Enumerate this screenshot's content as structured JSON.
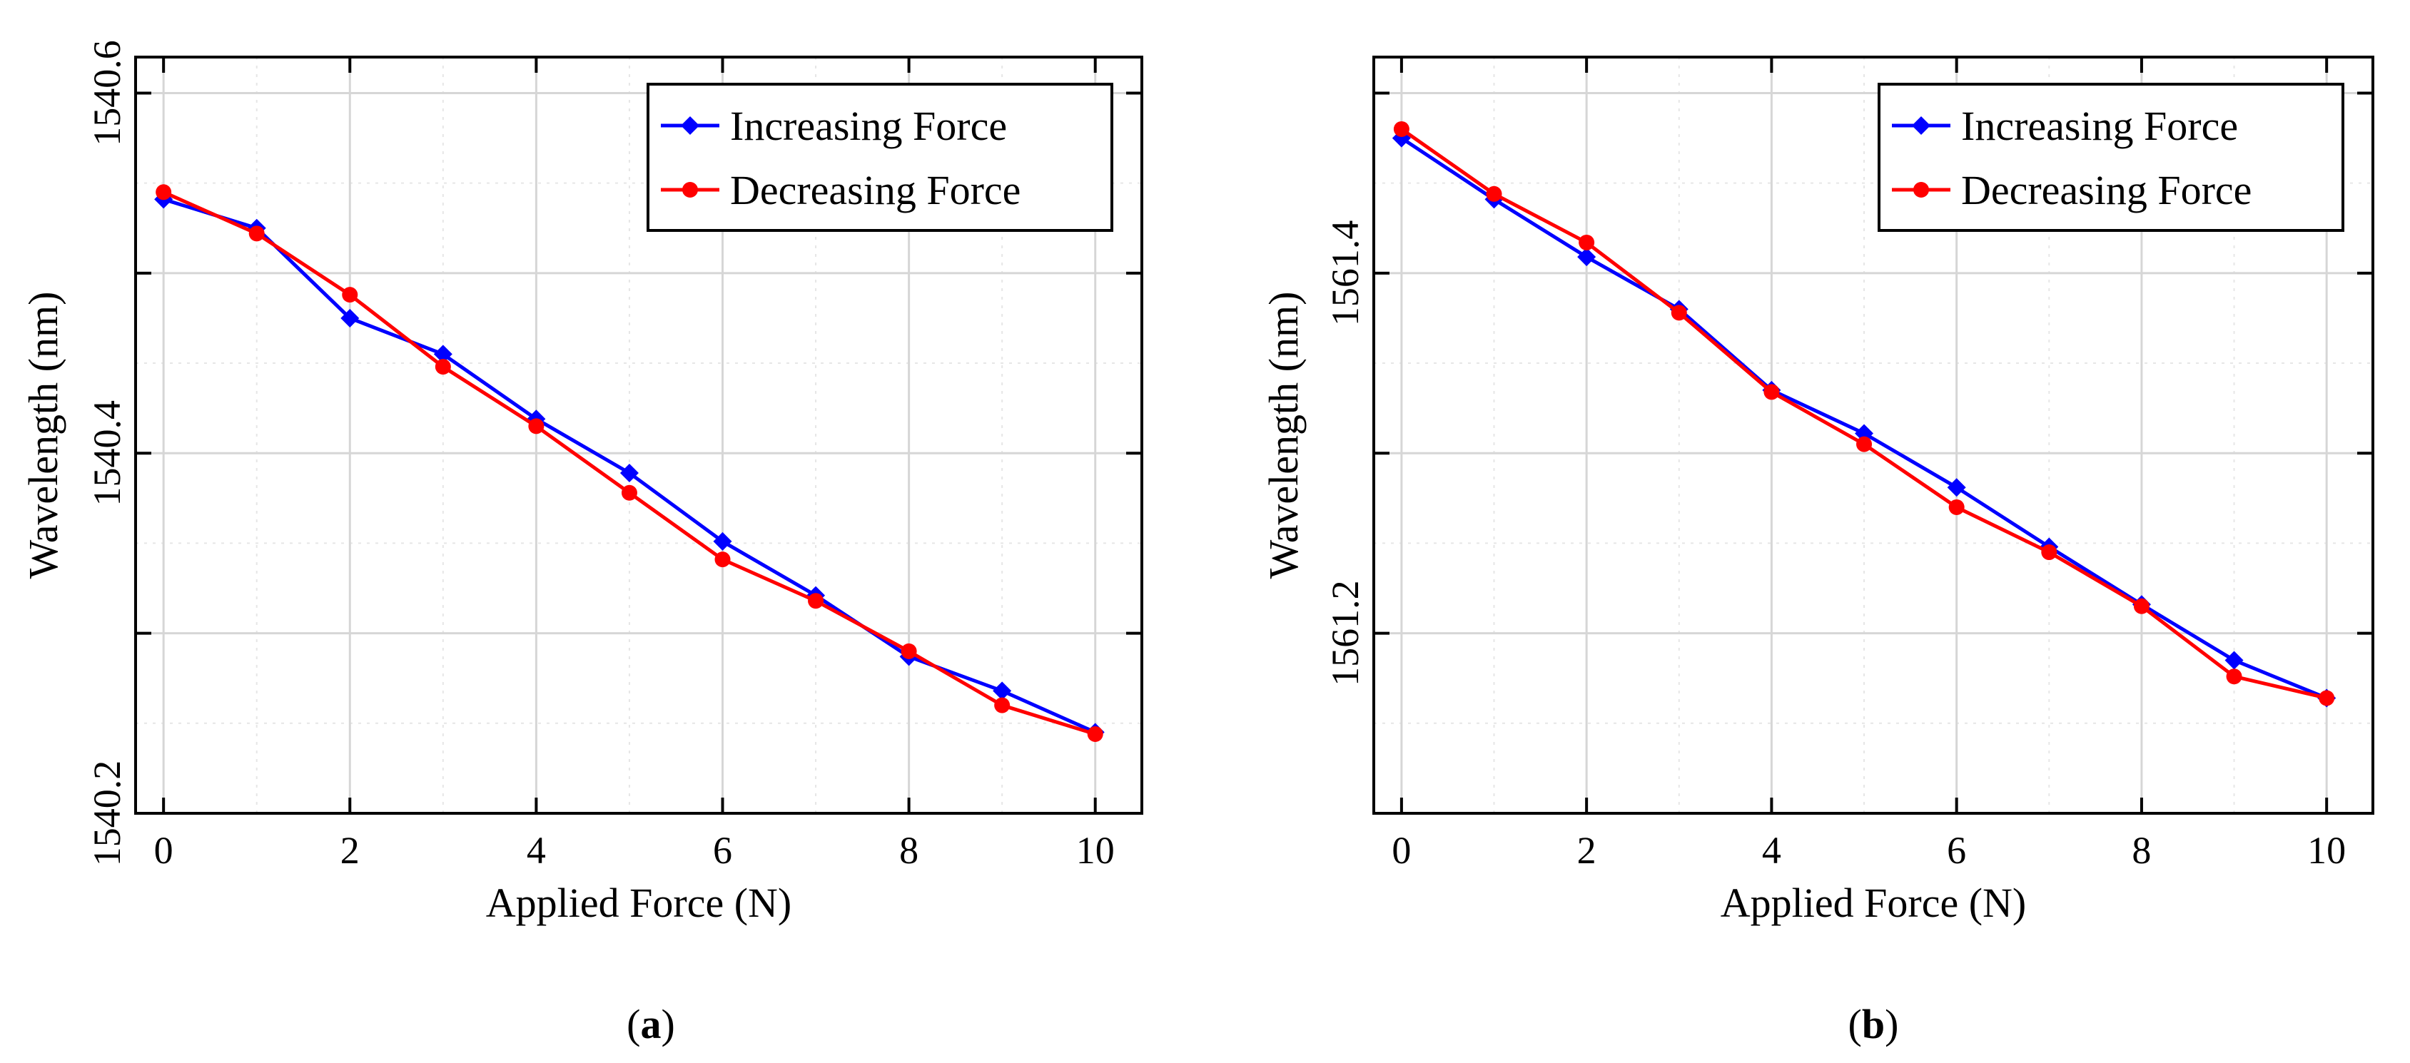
{
  "chart_data": [
    {
      "type": "line",
      "panel_label": "a",
      "title": "",
      "xlabel": "Applied Force (N)",
      "ylabel": "Wavelength (nm)",
      "xlim": [
        -0.3,
        10.5
      ],
      "ylim": [
        1540.2,
        1540.62
      ],
      "xticks": [
        0,
        2,
        4,
        6,
        8,
        10
      ],
      "xtick_labels": [
        "0",
        "2",
        "4",
        "6",
        "8",
        "10"
      ],
      "yticks": [
        1540.2,
        1540.4,
        1540.6
      ],
      "ytick_labels": [
        "1540.2",
        "1540.4",
        "1540.6"
      ],
      "grid": true,
      "legend_position": "top-right",
      "x": [
        0,
        1,
        2,
        3,
        4,
        5,
        6,
        7,
        8,
        9,
        10
      ],
      "series": [
        {
          "name": "Increasing Force",
          "color": "#0000ff",
          "marker": "diamond",
          "values": [
            1540.541,
            1540.525,
            1540.475,
            1540.455,
            1540.419,
            1540.389,
            1540.351,
            1540.321,
            1540.287,
            1540.268,
            1540.245
          ]
        },
        {
          "name": "Decreasing Force",
          "color": "#ff0000",
          "marker": "circle",
          "values": [
            1540.545,
            1540.522,
            1540.488,
            1540.448,
            1540.415,
            1540.378,
            1540.341,
            1540.318,
            1540.29,
            1540.26,
            1540.244
          ]
        }
      ]
    },
    {
      "type": "line",
      "panel_label": "b",
      "title": "",
      "xlabel": "Applied Force (N)",
      "ylabel": "Wavelength (nm)",
      "xlim": [
        -0.3,
        10.5
      ],
      "ylim": [
        1561.1,
        1561.52
      ],
      "xticks": [
        0,
        2,
        4,
        6,
        8,
        10
      ],
      "xtick_labels": [
        "0",
        "2",
        "4",
        "6",
        "8",
        "10"
      ],
      "yticks": [
        1561.2,
        1561.4
      ],
      "ytick_labels": [
        "1561.2",
        "1561.4"
      ],
      "grid": true,
      "legend_position": "top-right",
      "x": [
        0,
        1,
        2,
        3,
        4,
        5,
        6,
        7,
        8,
        9,
        10
      ],
      "series": [
        {
          "name": "Increasing Force",
          "color": "#0000ff",
          "marker": "diamond",
          "values": [
            1561.475,
            1561.441,
            1561.409,
            1561.38,
            1561.335,
            1561.311,
            1561.281,
            1561.248,
            1561.216,
            1561.185,
            1561.164
          ]
        },
        {
          "name": "Decreasing Force",
          "color": "#ff0000",
          "marker": "circle",
          "values": [
            1561.48,
            1561.444,
            1561.417,
            1561.378,
            1561.334,
            1561.305,
            1561.27,
            1561.245,
            1561.215,
            1561.176,
            1561.164
          ]
        }
      ]
    }
  ]
}
